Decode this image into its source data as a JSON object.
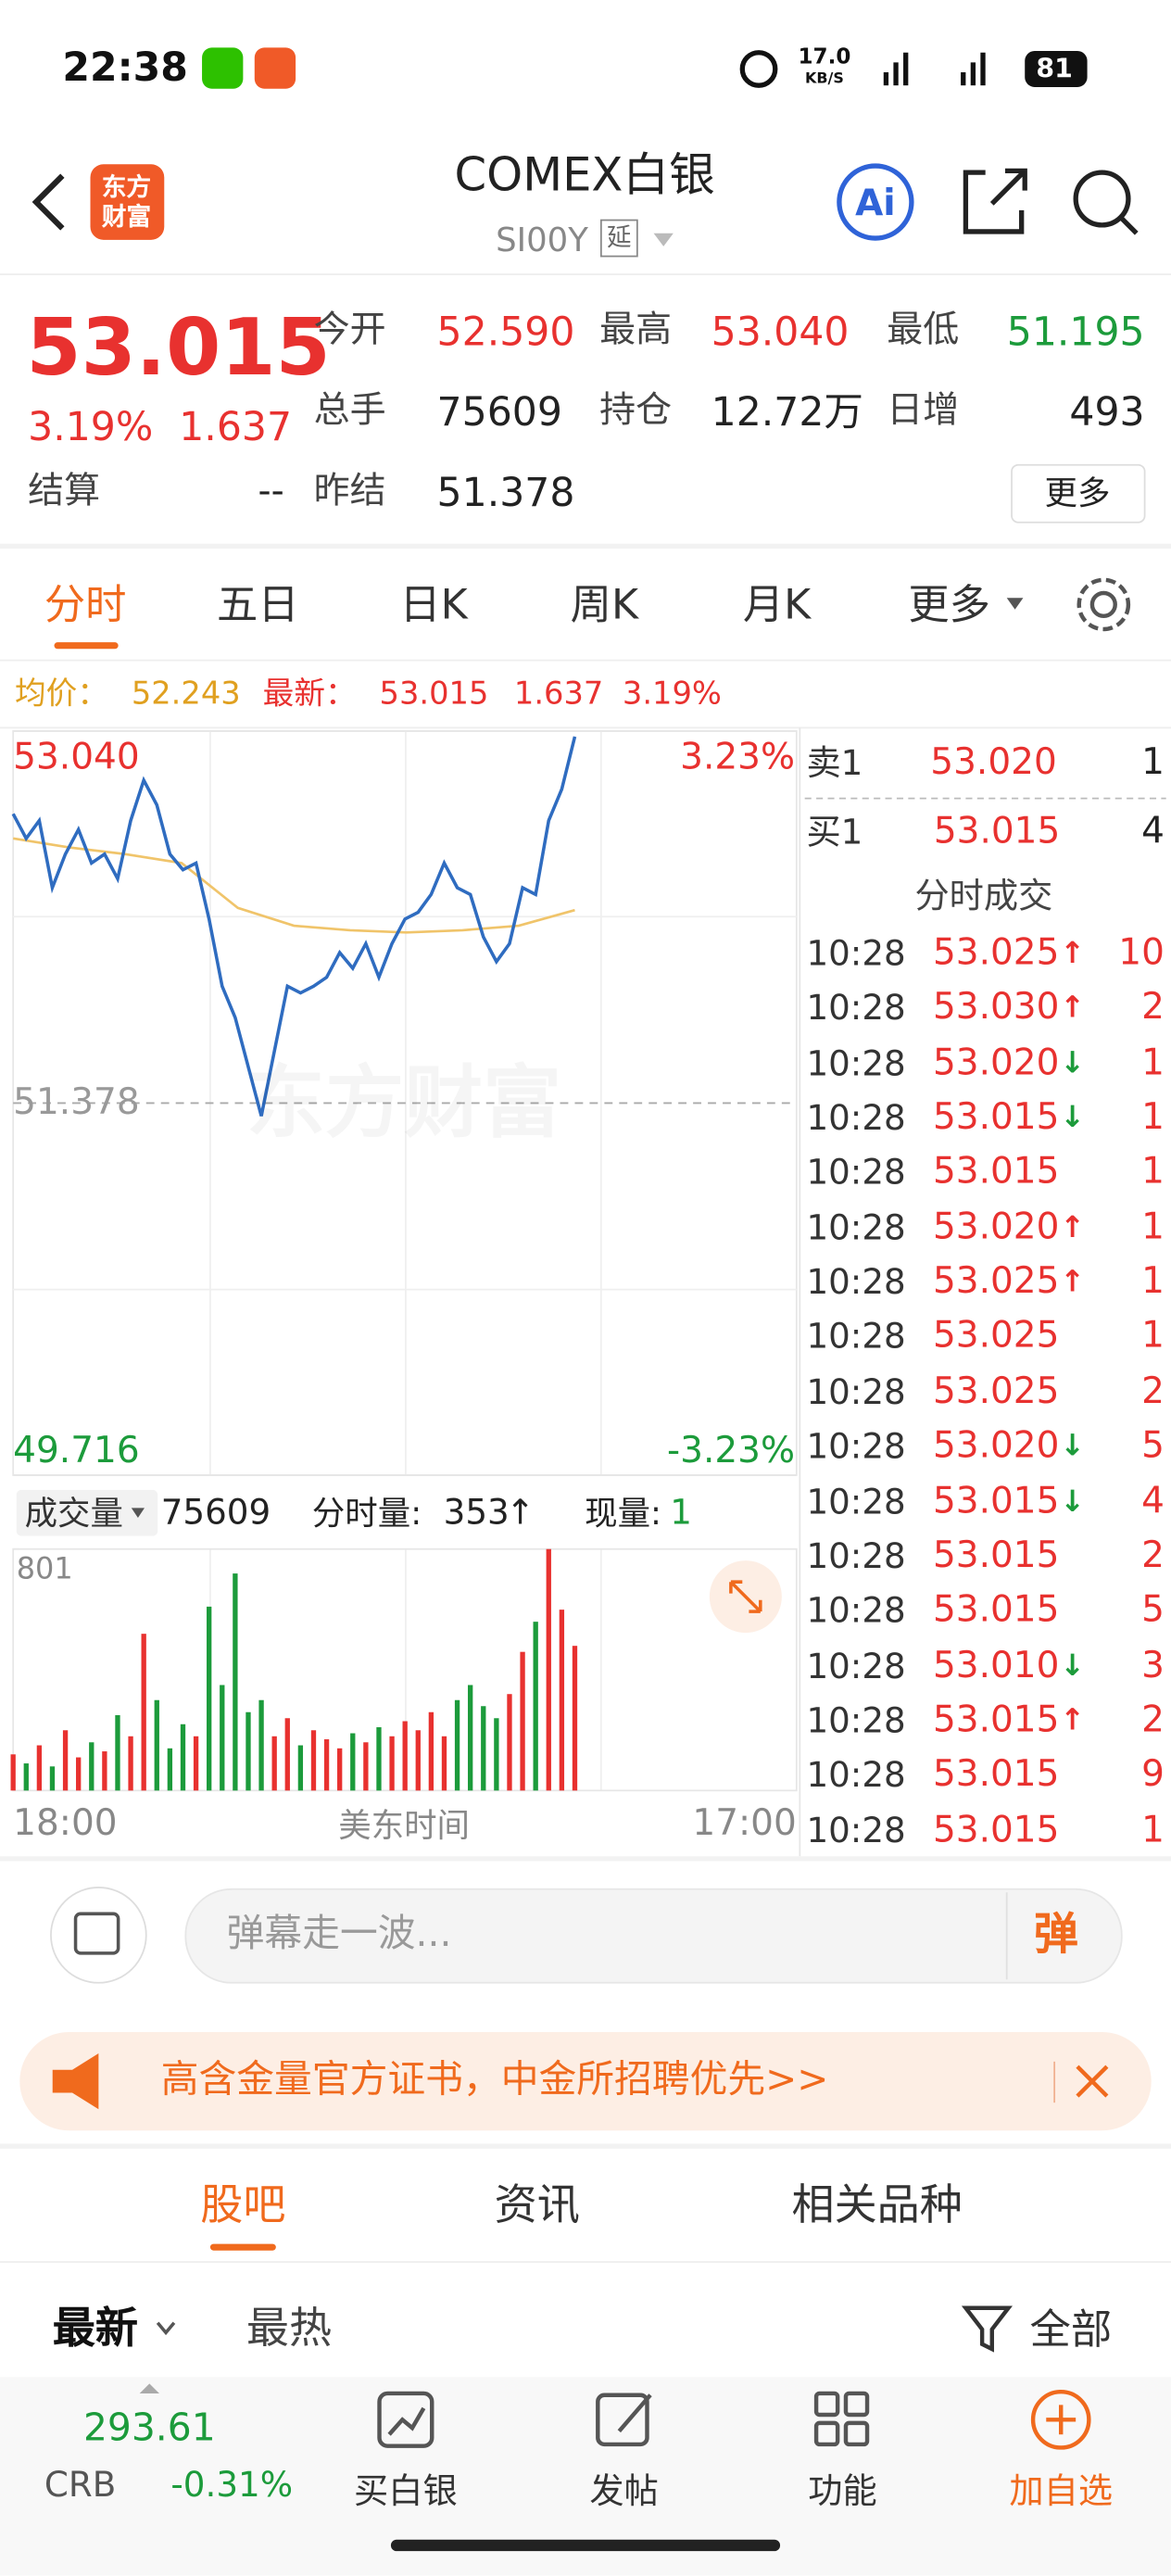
{
  "status_bar": {
    "time": "22:38",
    "speed": "17.0",
    "speed_unit": "KB/S",
    "battery": "81"
  },
  "header": {
    "logo": "东方财富",
    "title": "COMEX白银",
    "code": "SI00Y",
    "delay_tag": "延"
  },
  "quote": {
    "price": "53.015",
    "change_pct": "3.19%",
    "change": "1.637",
    "settle_label": "结算",
    "settle": "--",
    "more": "更多",
    "fields": [
      {
        "label": "今开",
        "value": "52.590",
        "color": "#e8312f"
      },
      {
        "label": "最高",
        "value": "53.040",
        "color": "#e8312f"
      },
      {
        "label": "最低",
        "value": "51.195",
        "color": "#1c9b3b"
      },
      {
        "label": "总手",
        "value": "75609",
        "color": "#222222"
      },
      {
        "label": "持仓",
        "value": "12.72万",
        "color": "#222222"
      },
      {
        "label": "日增",
        "value": "493",
        "color": "#222222"
      },
      {
        "label": "昨结",
        "value": "51.378",
        "color": "#222222"
      }
    ]
  },
  "tabs": {
    "items": [
      "分时",
      "五日",
      "日K",
      "周K",
      "月K",
      "更多"
    ],
    "active": 0
  },
  "summary": {
    "avg_label": "均价：",
    "avg": "52.243",
    "last_label": "最新：",
    "last": "53.015",
    "change": "1.637",
    "change_pct": "3.19%"
  },
  "intraday": {
    "type": "line",
    "watermark": "东方财富",
    "ylim": [
      49.716,
      53.04
    ],
    "yticks": [
      49.716,
      51.378,
      {
        "value": 53.04,
        "label": "53.040"
      }
    ],
    "y2lim": [
      -3.23,
      3.23
    ],
    "y2ticks": [
      {
        "value": -3.23,
        "label": "-3.23%"
      },
      {
        "value": 3.23,
        "label": "3.23%"
      }
    ],
    "series": [
      {
        "color": "#2f6cc0",
        "values": [
          52.67,
          52.56,
          52.64,
          52.34,
          52.49,
          52.6,
          52.45,
          52.49,
          52.38,
          52.64,
          52.82,
          52.71,
          52.49,
          52.42,
          52.45,
          52.2,
          51.9,
          51.76,
          51.54,
          51.32,
          51.61,
          51.9,
          51.87,
          51.9,
          51.94,
          52.05,
          51.98,
          52.09,
          51.94,
          52.09,
          52.2,
          52.23,
          52.31,
          52.45,
          52.34,
          52.31,
          52.12,
          52.01,
          52.09,
          52.34,
          52.31,
          52.64,
          52.78,
          53.015
        ]
      },
      {
        "color": "#f0c46a",
        "values": [
          52.56,
          52.52,
          52.49,
          52.45,
          52.25,
          52.17,
          52.15,
          52.14,
          52.15,
          52.17,
          52.24
        ]
      }
    ],
    "x_labels": [
      "18:00",
      "美东时间",
      "17:00"
    ]
  },
  "volume": {
    "type": "bar",
    "label": "成交量",
    "total": "75609",
    "tick_volume_label": "分时量:",
    "tick_volume": "353",
    "tick_volume_arrow": "↑",
    "current_label": "现量:",
    "current": "1",
    "ylim": [
      0,
      801
    ],
    "yticks": [
      801
    ],
    "colors": {
      "up": "#e8312f",
      "down": "#1c9b3b"
    },
    "values": [
      120,
      90,
      150,
      80,
      200,
      110,
      160,
      130,
      250,
      180,
      520,
      300,
      140,
      220,
      180,
      610,
      350,
      720,
      260,
      300,
      180,
      240,
      150,
      200,
      170,
      140,
      190,
      160,
      210,
      180,
      230,
      200,
      260,
      180,
      300,
      350,
      280,
      240,
      320,
      460,
      560,
      801,
      600,
      480
    ]
  },
  "order_book": {
    "asks": [
      {
        "label": "卖1",
        "price": "53.020",
        "volume": "1"
      }
    ],
    "bids": [
      {
        "label": "买1",
        "price": "53.015",
        "volume": "4"
      }
    ]
  },
  "trades": {
    "title": "分时成交",
    "rows": [
      {
        "time": "10:28",
        "price": "53.025",
        "arrow": "↑",
        "volume": "10"
      },
      {
        "time": "10:28",
        "price": "53.030",
        "arrow": "↑",
        "volume": "2"
      },
      {
        "time": "10:28",
        "price": "53.020",
        "arrow": "↓",
        "volume": "1"
      },
      {
        "time": "10:28",
        "price": "53.015",
        "arrow": "↓",
        "volume": "1"
      },
      {
        "time": "10:28",
        "price": "53.015",
        "volume": "1"
      },
      {
        "time": "10:28",
        "price": "53.020",
        "arrow": "↑",
        "volume": "1"
      },
      {
        "time": "10:28",
        "price": "53.025",
        "arrow": "↑",
        "volume": "1"
      },
      {
        "time": "10:28",
        "price": "53.025",
        "volume": "1"
      },
      {
        "time": "10:28",
        "price": "53.025",
        "volume": "2"
      },
      {
        "time": "10:28",
        "price": "53.020",
        "arrow": "↓",
        "volume": "5"
      },
      {
        "time": "10:28",
        "price": "53.015",
        "arrow": "↓",
        "volume": "4"
      },
      {
        "time": "10:28",
        "price": "53.015",
        "volume": "2"
      },
      {
        "time": "10:28",
        "price": "53.015",
        "volume": "5"
      },
      {
        "time": "10:28",
        "price": "53.010",
        "arrow": "↓",
        "volume": "3"
      },
      {
        "time": "10:28",
        "price": "53.015",
        "arrow": "↑",
        "volume": "2"
      },
      {
        "time": "10:28",
        "price": "53.015",
        "volume": "9"
      },
      {
        "time": "10:28",
        "price": "53.015",
        "volume": "1"
      }
    ]
  },
  "comment": {
    "placeholder": "弹幕走一波...",
    "button": "弹"
  },
  "banner": {
    "text": "高含金量官方证书，中金所招聘优先>>"
  },
  "sections": {
    "items": [
      "股吧",
      "资讯",
      "相关品种"
    ],
    "active": 0
  },
  "filter": {
    "items": [
      "最新",
      "最热"
    ],
    "all": "全部"
  },
  "bottom_bar": {
    "index_value": "293.61",
    "index_name": "CRB",
    "index_change": "-0.31%",
    "actions": [
      "买白银",
      "发帖",
      "功能",
      "加自选"
    ]
  }
}
